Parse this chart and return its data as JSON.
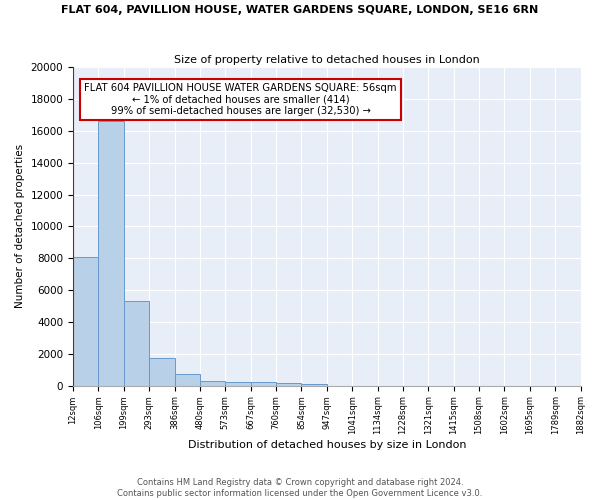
{
  "title1": "FLAT 604, PAVILLION HOUSE, WATER GARDENS SQUARE, LONDON, SE16 6RN",
  "title2": "Size of property relative to detached houses in London",
  "xlabel": "Distribution of detached houses by size in London",
  "ylabel": "Number of detached properties",
  "bin_labels": [
    "12sqm",
    "106sqm",
    "199sqm",
    "293sqm",
    "386sqm",
    "480sqm",
    "573sqm",
    "667sqm",
    "760sqm",
    "854sqm",
    "947sqm",
    "1041sqm",
    "1134sqm",
    "1228sqm",
    "1321sqm",
    "1415sqm",
    "1508sqm",
    "1602sqm",
    "1695sqm",
    "1789sqm",
    "1882sqm"
  ],
  "bar_heights": [
    8100,
    16600,
    5300,
    1750,
    700,
    300,
    230,
    200,
    170,
    130,
    0,
    0,
    0,
    0,
    0,
    0,
    0,
    0,
    0,
    0
  ],
  "bar_color": "#b8d0e8",
  "bar_edge_color": "#6699cc",
  "background_color": "#e8eef7",
  "property_line_color": "#cc0000",
  "annotation_text": "FLAT 604 PAVILLION HOUSE WATER GARDENS SQUARE: 56sqm\n← 1% of detached houses are smaller (414)\n99% of semi-detached houses are larger (32,530) →",
  "annotation_box_color": "#ffffff",
  "annotation_box_edge": "#cc0000",
  "ylim": [
    0,
    20000
  ],
  "yticks": [
    0,
    2000,
    4000,
    6000,
    8000,
    10000,
    12000,
    14000,
    16000,
    18000,
    20000
  ],
  "footer": "Contains HM Land Registry data © Crown copyright and database right 2024.\nContains public sector information licensed under the Open Government Licence v3.0."
}
